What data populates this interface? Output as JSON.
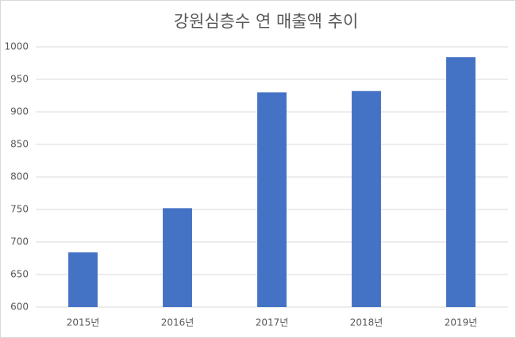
{
  "chart_data": {
    "type": "bar",
    "title": "강원심층수 연 매출액 추이",
    "categories": [
      "2015년",
      "2016년",
      "2017년",
      "2018년",
      "2019년"
    ],
    "values": [
      684,
      752,
      930,
      932,
      984
    ],
    "color": "#4472c4",
    "ylim": [
      600,
      1000
    ],
    "yticks": [
      600,
      650,
      700,
      750,
      800,
      850,
      900,
      950,
      1000
    ],
    "grid": true
  }
}
